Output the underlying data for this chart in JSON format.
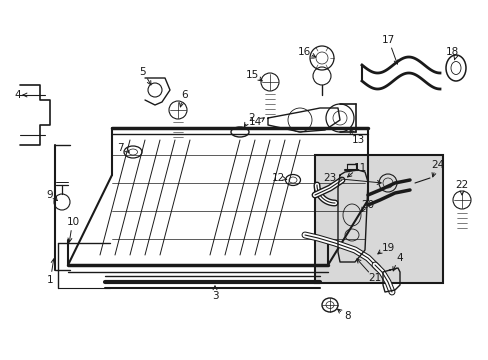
{
  "bg_color": "#ffffff",
  "line_color": "#1a1a1a",
  "fig_width": 4.89,
  "fig_height": 3.6,
  "dpi": 100,
  "inset_bg": "#d0d0d0",
  "label_fontsize": 7.5
}
